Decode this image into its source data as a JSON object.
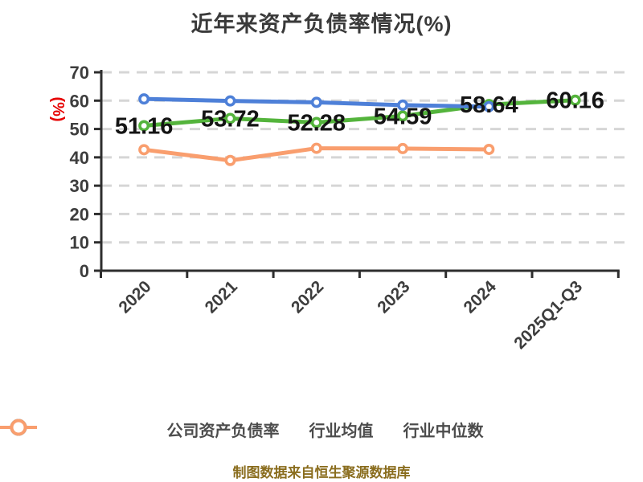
{
  "title": "近年来资产负债率情况(%)",
  "footer": {
    "text": "制图数据来自恒生聚源数据库",
    "color": "#8a6d1e"
  },
  "chart_data": {
    "type": "line",
    "title": "近年来资产负债率情况(%)",
    "categories": [
      "2020",
      "2021",
      "2022",
      "2023",
      "2024",
      "2025Q1-Q3"
    ],
    "series": [
      {
        "name": "公司资产负债率",
        "color": "#54b43c",
        "values": [
          51.16,
          53.72,
          52.28,
          54.59,
          58.64,
          60.16
        ],
        "show_labels": true
      },
      {
        "name": "行业均值",
        "color": "#4e80d8",
        "values": [
          60.6,
          59.9,
          59.4,
          58.4,
          57.9,
          null
        ],
        "show_labels": false
      },
      {
        "name": "行业中位数",
        "color": "#f99e6e",
        "values": [
          42.7,
          38.9,
          43.2,
          43.1,
          42.8,
          null
        ],
        "show_labels": false
      }
    ],
    "ylim": [
      0,
      70
    ],
    "y_ticks": [
      0,
      10,
      20,
      30,
      40,
      50,
      60,
      70
    ],
    "y_unit": "(%)",
    "y_unit_color": "#e60000",
    "grid": "horizontal-dashed",
    "grid_color": "#d6d6d6",
    "axis_color": "#2e2e2e",
    "tick_label_color": "#3d3d3d",
    "data_label_color": "#141414",
    "marker": "circle-white-fill",
    "legend_position": "bottom",
    "x_label_rotation": -45
  }
}
